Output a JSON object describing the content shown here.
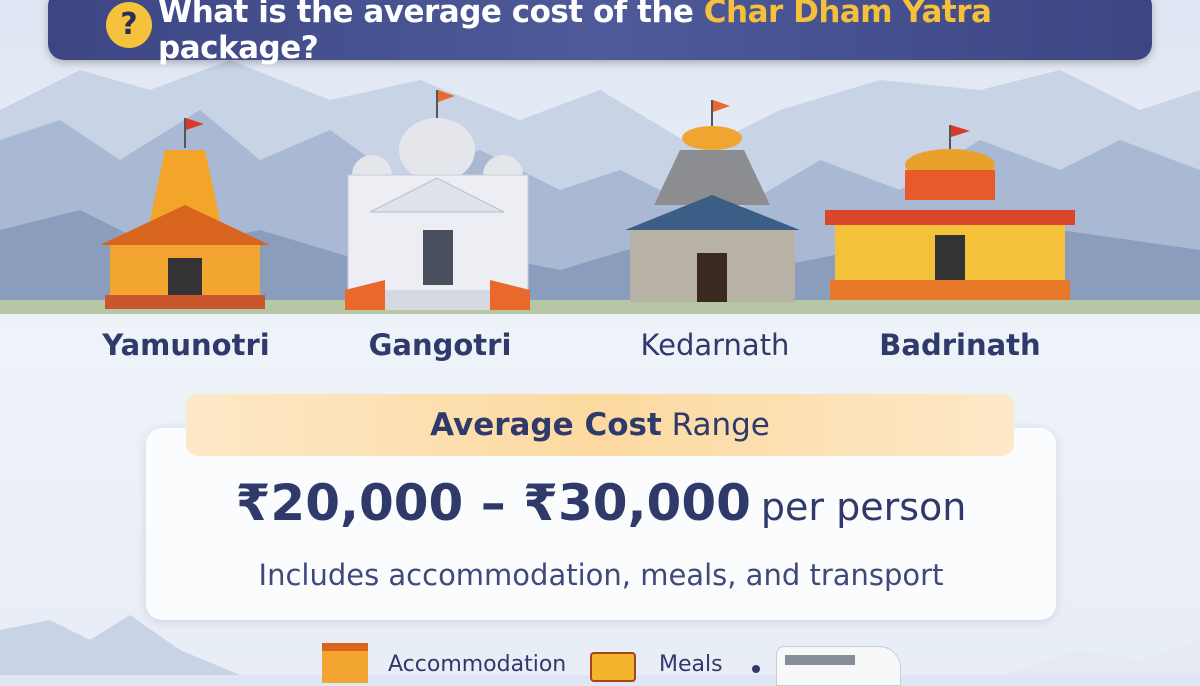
{
  "header": {
    "title_before": "What is the average cost of the ",
    "title_highlight": "Char Dham Yatra",
    "title_after": " package?",
    "icon": "question-icon"
  },
  "temples": [
    {
      "name": "Yamunotri"
    },
    {
      "name": "Gangotri"
    },
    {
      "name": "Kedarnath"
    },
    {
      "name": "Badrinath"
    }
  ],
  "cost": {
    "label_bold": "Average Cost",
    "label_rest": " Range",
    "amount": "₹20,000 – ₹30,000",
    "unit": "per person",
    "includes": "Includes accommodation, meals, and transport"
  },
  "features": [
    {
      "label": "Accommodation",
      "icon": "hotel-icon"
    },
    {
      "label": "Meals",
      "icon": "meal-box-icon"
    },
    {
      "label": "",
      "icon": "van-icon"
    }
  ],
  "colors": {
    "banner": "#3d4683",
    "highlight": "#f5c03b",
    "text": "#2f3a6b",
    "pill": "#fcd9a0"
  }
}
